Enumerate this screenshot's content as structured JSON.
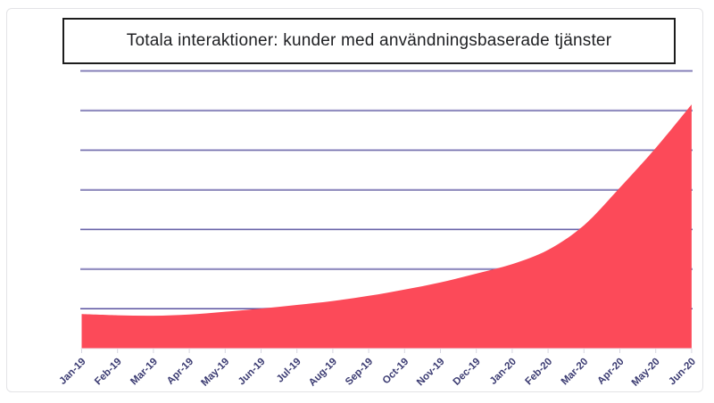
{
  "title": {
    "text": "Totala interaktioner: kunder med användningsbaserade tjänster"
  },
  "chart_data": {
    "type": "area",
    "title": "Totala interaktioner: kunder med användningsbaserade tjänster",
    "x": [
      "Jan-19",
      "Feb-19",
      "Mar-19",
      "Apr-19",
      "May-19",
      "Jun-19",
      "Jul-19",
      "Aug-19",
      "Sep-19",
      "Oct-19",
      "Nov-19",
      "Dec-19",
      "Jan-20",
      "Feb-20",
      "Mar-20",
      "Apr-20",
      "May-20",
      "Jun-20"
    ],
    "values": [
      0.86,
      0.83,
      0.82,
      0.85,
      0.92,
      1.0,
      1.09,
      1.19,
      1.32,
      1.48,
      1.66,
      1.88,
      2.12,
      2.48,
      3.1,
      4.05,
      5.05,
      6.15
    ],
    "xlabel": "",
    "ylabel": "",
    "ylim": [
      0,
      7
    ],
    "gridline_count": 7,
    "grid": true,
    "legend": false,
    "y_tick_labels_visible": false,
    "series_name": "Totala interaktioner",
    "colors": {
      "area": "#fc4a59",
      "grid_light": "#b0abd6",
      "grid_dark": "#57519a",
      "axis_line": "#ebebf2",
      "tick": "#d5d5e0",
      "label": "#3b3b72",
      "title_text": "#202124",
      "title_border": "#1d1d1d",
      "card_border": "#e3e3e6"
    }
  }
}
